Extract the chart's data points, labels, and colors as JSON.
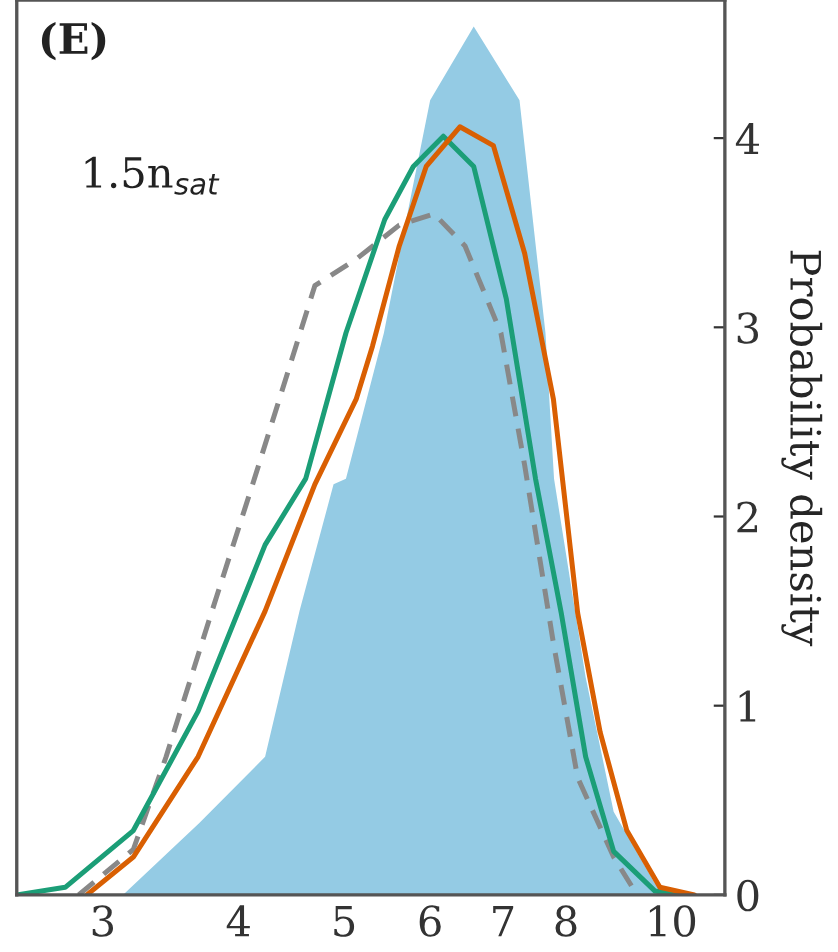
{
  "chart_data": {
    "type": "line",
    "ylabel": "Probability density",
    "log": "x",
    "xlim": [
      2.5,
      11.2
    ],
    "xticks": [
      3,
      4,
      5,
      6,
      7,
      8,
      10
    ],
    "ylim": [
      0,
      4.73
    ],
    "yticks": [
      0,
      1,
      2,
      3,
      4
    ],
    "annotations": [
      "(E)",
      "1.5n$_{sat}$"
    ],
    "grid": false,
    "legend": false,
    "series": [
      {
        "type": "area",
        "color": "#94cbe4",
        "x": [
          3.13,
          3.68,
          4.23,
          4.55,
          4.89,
          5.02,
          5.44,
          5.75,
          6.0,
          6.58,
          7.25,
          7.66,
          7.8,
          8.34,
          8.85,
          9.66,
          9.9
        ],
        "values": [
          0,
          0.38,
          0.73,
          1.5,
          2.17,
          2.2,
          2.97,
          3.67,
          4.2,
          4.59,
          4.2,
          2.97,
          2.2,
          1.15,
          0.44,
          0.06,
          0
        ]
      },
      {
        "color": "#888888",
        "line_style": "dashed",
        "x": [
          2.85,
          3.2,
          3.43,
          3.78,
          4.12,
          4.36,
          4.7,
          5.13,
          5.62,
          6.05,
          6.46,
          6.97,
          7.33,
          7.79,
          8.2,
          8.85,
          9.3
        ],
        "values": [
          0,
          0.24,
          0.73,
          1.5,
          2.17,
          2.62,
          3.22,
          3.36,
          3.54,
          3.6,
          3.43,
          2.97,
          2.27,
          1.33,
          0.62,
          0.2,
          0
        ]
      },
      {
        "color": "#1b9e77",
        "line_style": "solid",
        "x": [
          2.5,
          2.77,
          3.2,
          3.67,
          4.23,
          4.61,
          5.02,
          5.45,
          5.79,
          6.17,
          6.58,
          7.05,
          7.5,
          7.92,
          8.34,
          8.85,
          9.66,
          10.2
        ],
        "values": [
          0,
          0.04,
          0.34,
          0.97,
          1.85,
          2.2,
          2.97,
          3.57,
          3.85,
          4.01,
          3.85,
          3.15,
          2.2,
          1.49,
          0.73,
          0.23,
          0.02,
          0
        ]
      },
      {
        "color": "#d95f02",
        "line_style": "solid",
        "x": [
          2.9,
          3.2,
          3.67,
          4.23,
          4.7,
          5.13,
          5.31,
          5.62,
          5.95,
          6.39,
          6.86,
          7.33,
          7.79,
          8.2,
          8.6,
          9.1,
          9.76,
          10.5
        ],
        "values": [
          0,
          0.2,
          0.73,
          1.5,
          2.17,
          2.62,
          2.9,
          3.43,
          3.85,
          4.06,
          3.96,
          3.39,
          2.62,
          1.49,
          0.86,
          0.34,
          0.04,
          0
        ]
      }
    ]
  }
}
